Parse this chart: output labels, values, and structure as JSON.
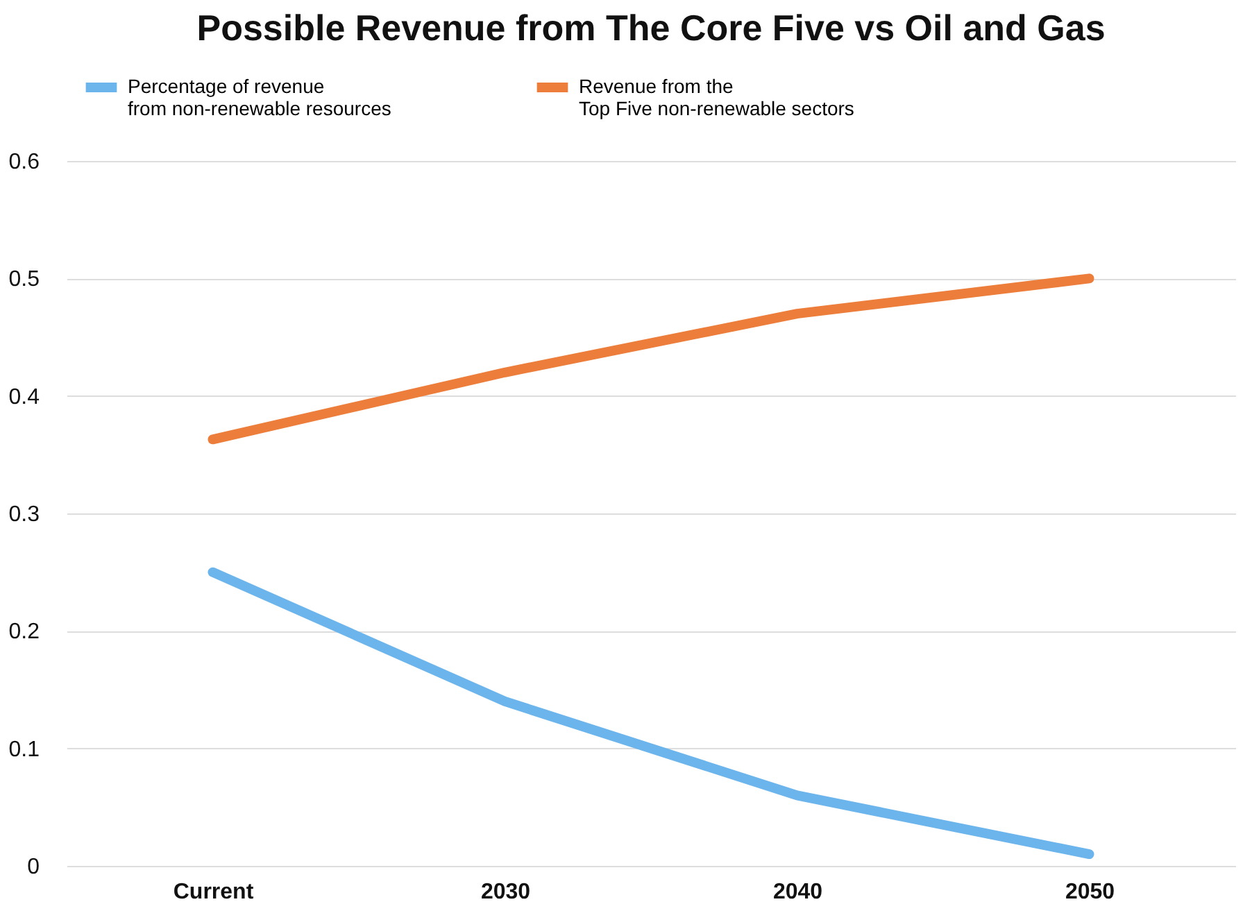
{
  "chart_data": {
    "type": "line",
    "title": "Possible Revenue from The Core Five vs Oil and Gas",
    "categories": [
      "Current",
      "2030",
      "2040",
      "2050"
    ],
    "series": [
      {
        "name": "Percentage of revenue\nfrom non-renewable resources",
        "color": "#6cb4ec",
        "values": [
          0.25,
          0.14,
          0.06,
          0.01
        ]
      },
      {
        "name": "Revenue from the\nTop Five non-renewable sectors",
        "color": "#ec7d3a",
        "values": [
          0.363,
          0.42,
          0.47,
          0.5
        ]
      }
    ],
    "ylim": [
      0,
      0.6
    ],
    "yticks": [
      {
        "value": 0,
        "label": "0"
      },
      0.1,
      0.2,
      0.3,
      0.4,
      0.5,
      0.6
    ],
    "grid": "y",
    "legend": "top",
    "marker": "none",
    "line_style": "solid"
  }
}
